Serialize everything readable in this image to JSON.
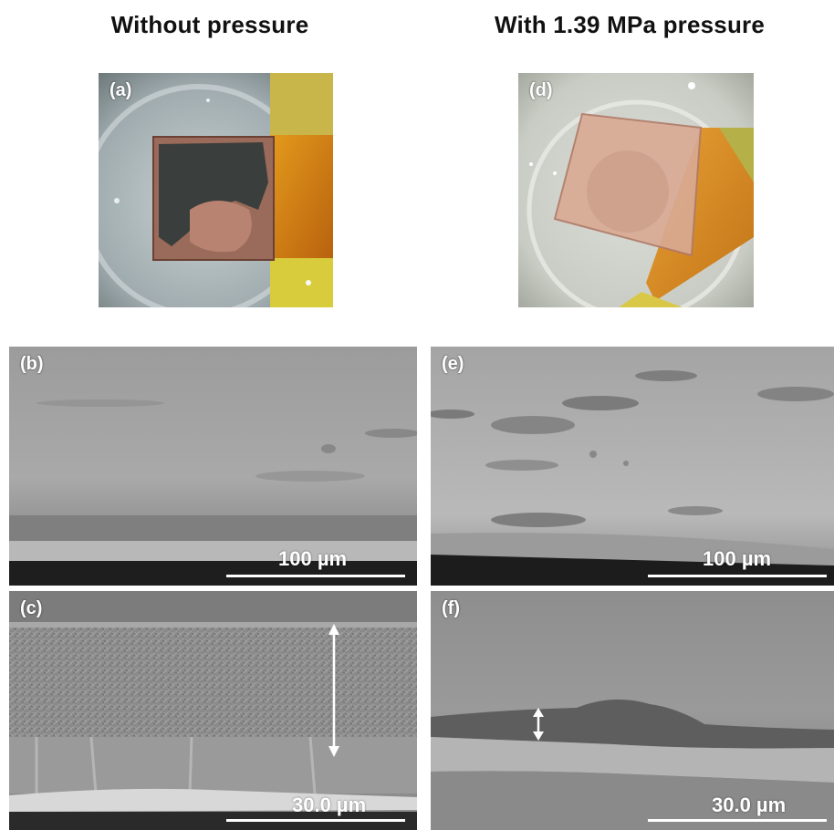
{
  "figure": {
    "column_titles": {
      "left": "Without pressure",
      "right": "With 1.39 MPa pressure"
    },
    "panels": {
      "a": {
        "label": "(a)"
      },
      "b": {
        "label": "(b)",
        "scale": "100 µm"
      },
      "c": {
        "label": "(c)",
        "scale": "30.0 µm"
      },
      "d": {
        "label": "(d)"
      },
      "e": {
        "label": "(e)",
        "scale": "100 µm"
      },
      "f": {
        "label": "(f)",
        "scale": "30.0 µm"
      }
    }
  }
}
